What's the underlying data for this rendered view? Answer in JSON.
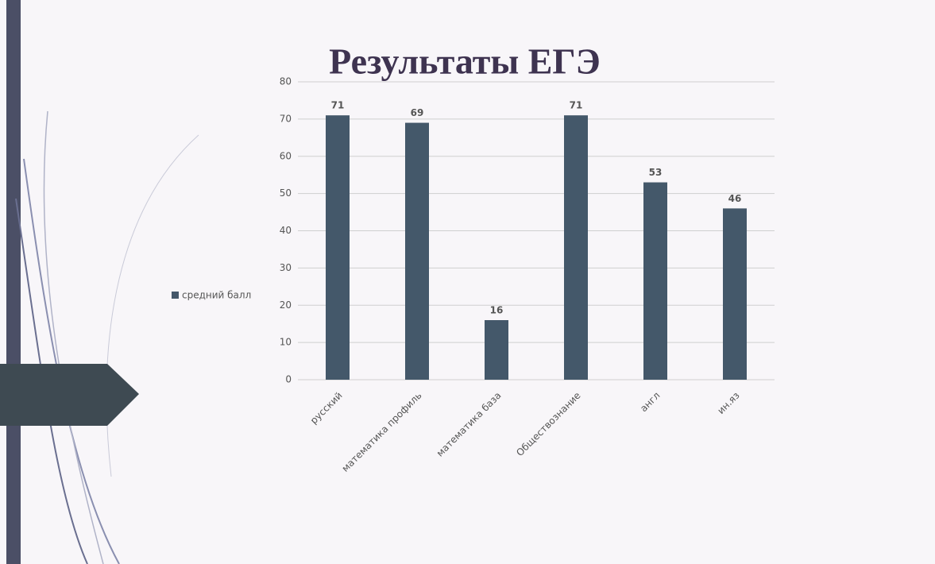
{
  "chart_data": {
    "type": "bar",
    "title": "Результаты ЕГЭ",
    "categories": [
      "русский",
      "математика профиль",
      "математика база",
      "Обществознание",
      "англ",
      "ин.яз"
    ],
    "series": [
      {
        "name": "средний балл",
        "color": "#44586a",
        "values": [
          71,
          69,
          16,
          71,
          53,
          46
        ]
      }
    ],
    "ylim": [
      0,
      80
    ],
    "yticks": [
      0,
      10,
      20,
      30,
      40,
      50,
      60,
      70,
      80
    ],
    "grid": true,
    "legend": "left"
  }
}
